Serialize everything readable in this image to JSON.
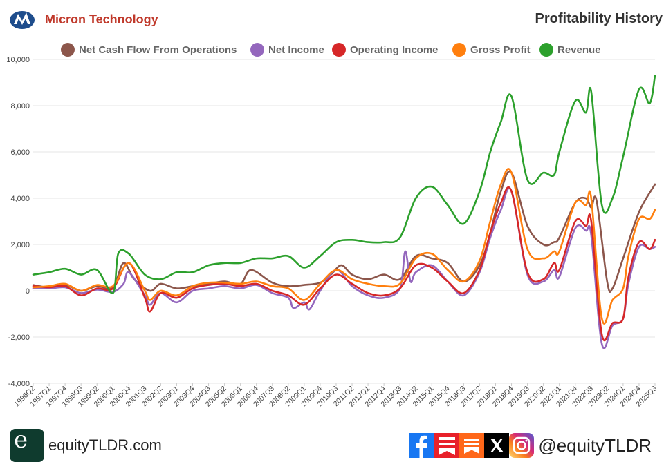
{
  "header": {
    "company": "Micron Technology",
    "title": "Profitability History"
  },
  "footer": {
    "site": "equityTLDR.com",
    "handle": "@equityTLDR",
    "brand_letter": "e"
  },
  "icons": [
    "micron-logo-icon",
    "equitytldr-logo-icon",
    "facebook-icon",
    "substack-icon",
    "x-icon",
    "instagram-icon"
  ],
  "chart_data": {
    "type": "line",
    "title": "Profitability History",
    "xlabel": "",
    "ylabel": "",
    "ylim": [
      -4000,
      10000
    ],
    "yticks": [
      -4000,
      -2000,
      0,
      2000,
      4000,
      6000,
      8000,
      10000
    ],
    "ytick_labels": [
      "-4,000",
      "-2,000",
      "0",
      "2,000",
      "4,000",
      "6,000",
      "8,000",
      "10,000"
    ],
    "grid": true,
    "legend_position": "top",
    "x_start": "1996Q2",
    "x_end": "2025Q3",
    "xtick_labels": [
      "1996Q2",
      "1997Q1",
      "1997Q4",
      "1998Q3",
      "1999Q2",
      "2000Q1",
      "2000Q4",
      "2001Q3",
      "2002Q2",
      "2003Q1",
      "2003Q4",
      "2004Q3",
      "2005Q2",
      "2006Q1",
      "2006Q4",
      "2007Q3",
      "2008Q2",
      "2009Q1",
      "2009Q4",
      "2010Q3",
      "2011Q2",
      "2012Q1",
      "2012Q4",
      "2013Q3",
      "2014Q2",
      "2015Q1",
      "2015Q4",
      "2016Q3",
      "2017Q2",
      "2018Q1",
      "2018Q4",
      "2019Q3",
      "2020Q2",
      "2021Q1",
      "2021Q4",
      "2022Q3",
      "2023Q2",
      "2024Q1",
      "2024Q4",
      "2025Q3"
    ],
    "series": [
      {
        "name": "Net Cash Flow From Operations",
        "color": "#8c564b",
        "points": [
          [
            "1996Q2",
            250
          ],
          [
            "1997Q1",
            150
          ],
          [
            "1997Q4",
            250
          ],
          [
            "1998Q3",
            0
          ],
          [
            "1999Q2",
            200
          ],
          [
            "2000Q1",
            150
          ],
          [
            "2000Q3",
            1200
          ],
          [
            "2001Q1",
            500
          ],
          [
            "2001Q4",
            0
          ],
          [
            "2002Q2",
            300
          ],
          [
            "2003Q1",
            100
          ],
          [
            "2003Q4",
            200
          ],
          [
            "2004Q3",
            300
          ],
          [
            "2005Q2",
            400
          ],
          [
            "2006Q1",
            300
          ],
          [
            "2006Q3",
            900
          ],
          [
            "2007Q3",
            350
          ],
          [
            "2008Q2",
            200
          ],
          [
            "2009Q1",
            250
          ],
          [
            "2009Q4",
            350
          ],
          [
            "2010Q2",
            700
          ],
          [
            "2010Q4",
            1100
          ],
          [
            "2011Q2",
            700
          ],
          [
            "2012Q1",
            500
          ],
          [
            "2012Q4",
            700
          ],
          [
            "2013Q3",
            500
          ],
          [
            "2014Q2",
            1500
          ],
          [
            "2015Q1",
            1400
          ],
          [
            "2015Q4",
            1200
          ],
          [
            "2016Q3",
            400
          ],
          [
            "2017Q2",
            1100
          ],
          [
            "2017Q4",
            2500
          ],
          [
            "2018Q2",
            4300
          ],
          [
            "2018Q4",
            5100
          ],
          [
            "2019Q3",
            2800
          ],
          [
            "2020Q2",
            2000
          ],
          [
            "2020Q4",
            2100
          ],
          [
            "2021Q1",
            2300
          ],
          [
            "2021Q4",
            3800
          ],
          [
            "2022Q2",
            4000
          ],
          [
            "2022Q3",
            3600
          ],
          [
            "2022Q4",
            3900
          ],
          [
            "2023Q2",
            400
          ],
          [
            "2023Q3",
            100
          ],
          [
            "2024Q1",
            1400
          ],
          [
            "2024Q4",
            3400
          ],
          [
            "2025Q3",
            4600
          ]
        ]
      },
      {
        "name": "Net Income",
        "color": "#9467bd",
        "points": [
          [
            "1996Q2",
            100
          ],
          [
            "1997Q1",
            100
          ],
          [
            "1997Q4",
            150
          ],
          [
            "1998Q3",
            -100
          ],
          [
            "1999Q2",
            50
          ],
          [
            "2000Q1",
            -50
          ],
          [
            "2000Q3",
            300
          ],
          [
            "2000Q4",
            800
          ],
          [
            "2001Q3",
            -200
          ],
          [
            "2001Q4",
            -600
          ],
          [
            "2002Q2",
            -100
          ],
          [
            "2003Q1",
            -500
          ],
          [
            "2003Q4",
            0
          ],
          [
            "2004Q3",
            100
          ],
          [
            "2005Q2",
            200
          ],
          [
            "2006Q1",
            100
          ],
          [
            "2006Q4",
            250
          ],
          [
            "2007Q3",
            -100
          ],
          [
            "2008Q2",
            -300
          ],
          [
            "2008Q3",
            -750
          ],
          [
            "2009Q1",
            -500
          ],
          [
            "2009Q2",
            -800
          ],
          [
            "2009Q4",
            0
          ],
          [
            "2010Q3",
            900
          ],
          [
            "2011Q2",
            200
          ],
          [
            "2012Q1",
            -200
          ],
          [
            "2012Q4",
            -300
          ],
          [
            "2013Q3",
            100
          ],
          [
            "2013Q4",
            1700
          ],
          [
            "2014Q1",
            400
          ],
          [
            "2014Q2",
            800
          ],
          [
            "2015Q1",
            1100
          ],
          [
            "2015Q4",
            400
          ],
          [
            "2016Q3",
            -200
          ],
          [
            "2017Q2",
            800
          ],
          [
            "2017Q4",
            2300
          ],
          [
            "2018Q2",
            3500
          ],
          [
            "2018Q4",
            4300
          ],
          [
            "2019Q3",
            700
          ],
          [
            "2020Q2",
            400
          ],
          [
            "2020Q4",
            900
          ],
          [
            "2021Q1",
            600
          ],
          [
            "2021Q4",
            2700
          ],
          [
            "2022Q2",
            2600
          ],
          [
            "2022Q3",
            2400
          ],
          [
            "2023Q1",
            -2300
          ],
          [
            "2023Q3",
            -1500
          ],
          [
            "2024Q1",
            -1200
          ],
          [
            "2024Q2",
            300
          ],
          [
            "2024Q4",
            1900
          ],
          [
            "2025Q2",
            1800
          ],
          [
            "2025Q3",
            1900
          ]
        ]
      },
      {
        "name": "Operating Income",
        "color": "#d62728",
        "points": [
          [
            "1996Q2",
            200
          ],
          [
            "1997Q1",
            150
          ],
          [
            "1997Q4",
            200
          ],
          [
            "1998Q3",
            -200
          ],
          [
            "1999Q2",
            100
          ],
          [
            "2000Q1",
            100
          ],
          [
            "2000Q4",
            1200
          ],
          [
            "2001Q3",
            -300
          ],
          [
            "2001Q4",
            -900
          ],
          [
            "2002Q2",
            -100
          ],
          [
            "2003Q1",
            -300
          ],
          [
            "2003Q4",
            100
          ],
          [
            "2004Q3",
            250
          ],
          [
            "2005Q2",
            300
          ],
          [
            "2006Q1",
            200
          ],
          [
            "2006Q4",
            300
          ],
          [
            "2007Q3",
            0
          ],
          [
            "2008Q2",
            -200
          ],
          [
            "2009Q1",
            -600
          ],
          [
            "2009Q4",
            100
          ],
          [
            "2010Q3",
            700
          ],
          [
            "2011Q2",
            300
          ],
          [
            "2012Q1",
            -100
          ],
          [
            "2012Q4",
            -200
          ],
          [
            "2013Q3",
            100
          ],
          [
            "2014Q2",
            1100
          ],
          [
            "2015Q1",
            1000
          ],
          [
            "2015Q4",
            400
          ],
          [
            "2016Q3",
            -100
          ],
          [
            "2017Q2",
            900
          ],
          [
            "2017Q4",
            2500
          ],
          [
            "2018Q2",
            3800
          ],
          [
            "2018Q4",
            4300
          ],
          [
            "2019Q3",
            800
          ],
          [
            "2020Q2",
            500
          ],
          [
            "2020Q4",
            1200
          ],
          [
            "2021Q1",
            900
          ],
          [
            "2021Q4",
            3000
          ],
          [
            "2022Q2",
            2800
          ],
          [
            "2022Q3",
            3000
          ],
          [
            "2023Q1",
            -1900
          ],
          [
            "2023Q3",
            -1400
          ],
          [
            "2024Q1",
            -1200
          ],
          [
            "2024Q2",
            600
          ],
          [
            "2024Q4",
            2100
          ],
          [
            "2025Q2",
            1800
          ],
          [
            "2025Q3",
            2200
          ]
        ]
      },
      {
        "name": "Gross Profit",
        "color": "#ff7f0e",
        "points": [
          [
            "1996Q2",
            150
          ],
          [
            "1997Q1",
            200
          ],
          [
            "1997Q4",
            300
          ],
          [
            "1998Q3",
            0
          ],
          [
            "1999Q2",
            250
          ],
          [
            "2000Q1",
            200
          ],
          [
            "2000Q4",
            1200
          ],
          [
            "2001Q3",
            0
          ],
          [
            "2001Q4",
            -400
          ],
          [
            "2002Q2",
            0
          ],
          [
            "2003Q1",
            -200
          ],
          [
            "2003Q4",
            200
          ],
          [
            "2004Q3",
            350
          ],
          [
            "2005Q2",
            350
          ],
          [
            "2006Q1",
            300
          ],
          [
            "2006Q4",
            400
          ],
          [
            "2007Q3",
            200
          ],
          [
            "2008Q2",
            100
          ],
          [
            "2009Q1",
            -400
          ],
          [
            "2009Q4",
            300
          ],
          [
            "2010Q3",
            900
          ],
          [
            "2011Q2",
            500
          ],
          [
            "2012Q1",
            300
          ],
          [
            "2012Q4",
            200
          ],
          [
            "2013Q3",
            300
          ],
          [
            "2014Q2",
            1400
          ],
          [
            "2015Q1",
            1600
          ],
          [
            "2015Q4",
            900
          ],
          [
            "2016Q3",
            400
          ],
          [
            "2017Q2",
            1300
          ],
          [
            "2017Q4",
            3000
          ],
          [
            "2018Q2",
            4600
          ],
          [
            "2018Q4",
            5100
          ],
          [
            "2019Q3",
            1800
          ],
          [
            "2020Q2",
            1400
          ],
          [
            "2020Q4",
            1700
          ],
          [
            "2021Q1",
            1700
          ],
          [
            "2021Q4",
            3800
          ],
          [
            "2022Q2",
            3700
          ],
          [
            "2022Q3",
            4000
          ],
          [
            "2023Q1",
            -1200
          ],
          [
            "2023Q3",
            -400
          ],
          [
            "2024Q1",
            100
          ],
          [
            "2024Q2",
            1500
          ],
          [
            "2024Q4",
            3100
          ],
          [
            "2025Q2",
            3100
          ],
          [
            "2025Q3",
            3500
          ]
        ]
      },
      {
        "name": "Revenue",
        "color": "#2ca02c",
        "points": [
          [
            "1996Q2",
            700
          ],
          [
            "1997Q1",
            800
          ],
          [
            "1997Q4",
            950
          ],
          [
            "1998Q3",
            700
          ],
          [
            "1999Q2",
            900
          ],
          [
            "2000Q1",
            -100
          ],
          [
            "2000Q2",
            1600
          ],
          [
            "2000Q4",
            1600
          ],
          [
            "2001Q3",
            700
          ],
          [
            "2002Q2",
            500
          ],
          [
            "2003Q1",
            800
          ],
          [
            "2003Q4",
            800
          ],
          [
            "2004Q3",
            1100
          ],
          [
            "2005Q2",
            1200
          ],
          [
            "2006Q1",
            1200
          ],
          [
            "2006Q4",
            1400
          ],
          [
            "2007Q3",
            1400
          ],
          [
            "2008Q2",
            1500
          ],
          [
            "2009Q1",
            1000
          ],
          [
            "2009Q4",
            1500
          ],
          [
            "2010Q3",
            2100
          ],
          [
            "2011Q2",
            2200
          ],
          [
            "2012Q1",
            2100
          ],
          [
            "2012Q4",
            2100
          ],
          [
            "2013Q3",
            2300
          ],
          [
            "2014Q2",
            4000
          ],
          [
            "2015Q1",
            4500
          ],
          [
            "2015Q4",
            3700
          ],
          [
            "2016Q3",
            2900
          ],
          [
            "2017Q2",
            4300
          ],
          [
            "2017Q4",
            6000
          ],
          [
            "2018Q2",
            7300
          ],
          [
            "2018Q4",
            8400
          ],
          [
            "2019Q3",
            4800
          ],
          [
            "2020Q2",
            5100
          ],
          [
            "2020Q4",
            5000
          ],
          [
            "2021Q1",
            6000
          ],
          [
            "2021Q4",
            8200
          ],
          [
            "2022Q2",
            7700
          ],
          [
            "2022Q3",
            8600
          ],
          [
            "2023Q1",
            3700
          ],
          [
            "2023Q3",
            4000
          ],
          [
            "2024Q1",
            5800
          ],
          [
            "2024Q4",
            8700
          ],
          [
            "2025Q2",
            8100
          ],
          [
            "2025Q3",
            9300
          ]
        ]
      }
    ]
  }
}
